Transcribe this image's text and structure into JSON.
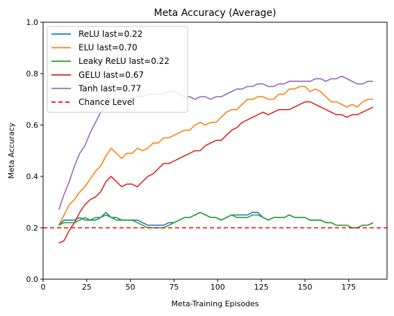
{
  "chart_data": {
    "type": "line",
    "title": "Meta Accuracy (Average)",
    "xlabel": "Meta-Training Episodes",
    "ylabel": "Meta Accuracy",
    "xlim": [
      0,
      197
    ],
    "ylim": [
      0.0,
      1.0
    ],
    "xticks": [
      0,
      25,
      50,
      75,
      100,
      125,
      150,
      175
    ],
    "yticks": [
      0.0,
      0.2,
      0.4,
      0.6,
      0.8,
      1.0
    ],
    "grid": false,
    "legend_position": "upper-left",
    "series": [
      {
        "name": "ReLU last=0.22",
        "color": "#1f77b4",
        "x": [
          9,
          12,
          15,
          18,
          21,
          24,
          27,
          30,
          33,
          36,
          39,
          42,
          45,
          48,
          51,
          54,
          57,
          60,
          63,
          66,
          69,
          72,
          75,
          78,
          81,
          84,
          87,
          90,
          93,
          96,
          99,
          102,
          105,
          108,
          111,
          114,
          117,
          120,
          123,
          126,
          129,
          132,
          135,
          138,
          141,
          144,
          147,
          150,
          153,
          156,
          159,
          162,
          165,
          168,
          171,
          174,
          177,
          180,
          183,
          186,
          189
        ],
        "values": [
          0.21,
          0.23,
          0.23,
          0.23,
          0.24,
          0.23,
          0.23,
          0.23,
          0.24,
          0.26,
          0.24,
          0.24,
          0.23,
          0.23,
          0.23,
          0.23,
          0.22,
          0.21,
          0.21,
          0.21,
          0.21,
          0.22,
          0.22,
          0.23,
          0.24,
          0.24,
          0.25,
          0.26,
          0.25,
          0.24,
          0.24,
          0.23,
          0.24,
          0.25,
          0.25,
          0.25,
          0.25,
          0.26,
          0.26,
          0.24,
          0.23,
          0.24,
          0.24,
          0.24,
          0.25,
          0.24,
          0.24,
          0.24,
          0.23,
          0.23,
          0.23,
          0.22,
          0.22,
          0.21,
          0.21,
          0.21,
          0.2,
          0.2,
          0.21,
          0.21,
          0.22
        ]
      },
      {
        "name": "ELU last=0.70",
        "color": "#ff7f0e",
        "x": [
          9,
          12,
          15,
          18,
          21,
          24,
          27,
          30,
          33,
          36,
          39,
          42,
          45,
          48,
          51,
          54,
          57,
          60,
          63,
          66,
          69,
          72,
          75,
          78,
          81,
          84,
          87,
          90,
          93,
          96,
          99,
          102,
          105,
          108,
          111,
          114,
          117,
          120,
          123,
          126,
          129,
          132,
          135,
          138,
          141,
          144,
          147,
          150,
          153,
          156,
          159,
          162,
          165,
          168,
          171,
          174,
          177,
          180,
          183,
          186,
          189
        ],
        "values": [
          0.21,
          0.25,
          0.29,
          0.31,
          0.34,
          0.36,
          0.39,
          0.42,
          0.44,
          0.48,
          0.51,
          0.49,
          0.47,
          0.49,
          0.49,
          0.51,
          0.5,
          0.51,
          0.53,
          0.53,
          0.55,
          0.55,
          0.56,
          0.57,
          0.58,
          0.58,
          0.6,
          0.61,
          0.6,
          0.61,
          0.61,
          0.63,
          0.65,
          0.66,
          0.66,
          0.68,
          0.7,
          0.7,
          0.71,
          0.71,
          0.7,
          0.7,
          0.72,
          0.72,
          0.74,
          0.74,
          0.75,
          0.75,
          0.73,
          0.74,
          0.73,
          0.71,
          0.69,
          0.69,
          0.68,
          0.67,
          0.68,
          0.67,
          0.69,
          0.7,
          0.7
        ]
      },
      {
        "name": "Leaky ReLU last=0.22",
        "color": "#2ca02c",
        "x": [
          9,
          12,
          15,
          18,
          21,
          24,
          27,
          30,
          33,
          36,
          39,
          42,
          45,
          48,
          51,
          54,
          57,
          60,
          63,
          66,
          69,
          72,
          75,
          78,
          81,
          84,
          87,
          90,
          93,
          96,
          99,
          102,
          105,
          108,
          111,
          114,
          117,
          120,
          123,
          126,
          129,
          132,
          135,
          138,
          141,
          144,
          147,
          150,
          153,
          156,
          159,
          162,
          165,
          168,
          171,
          174,
          177,
          180,
          183,
          186,
          189
        ],
        "values": [
          0.21,
          0.22,
          0.22,
          0.22,
          0.23,
          0.24,
          0.23,
          0.24,
          0.24,
          0.25,
          0.24,
          0.23,
          0.23,
          0.23,
          0.23,
          0.22,
          0.21,
          0.2,
          0.2,
          0.2,
          0.2,
          0.21,
          0.22,
          0.23,
          0.24,
          0.24,
          0.25,
          0.26,
          0.25,
          0.24,
          0.24,
          0.23,
          0.24,
          0.25,
          0.24,
          0.24,
          0.24,
          0.25,
          0.25,
          0.24,
          0.23,
          0.24,
          0.24,
          0.24,
          0.25,
          0.24,
          0.24,
          0.24,
          0.23,
          0.23,
          0.23,
          0.22,
          0.22,
          0.21,
          0.21,
          0.21,
          0.2,
          0.2,
          0.21,
          0.21,
          0.22
        ]
      },
      {
        "name": "GELU last=0.67",
        "color": "#d62728",
        "x": [
          9,
          12,
          15,
          18,
          21,
          24,
          27,
          30,
          33,
          36,
          39,
          42,
          45,
          48,
          51,
          54,
          57,
          60,
          63,
          66,
          69,
          72,
          75,
          78,
          81,
          84,
          87,
          90,
          93,
          96,
          99,
          102,
          105,
          108,
          111,
          114,
          117,
          120,
          123,
          126,
          129,
          132,
          135,
          138,
          141,
          144,
          147,
          150,
          153,
          156,
          159,
          162,
          165,
          168,
          171,
          174,
          177,
          180,
          183,
          186,
          189
        ],
        "values": [
          0.14,
          0.15,
          0.19,
          0.22,
          0.26,
          0.29,
          0.31,
          0.32,
          0.34,
          0.38,
          0.4,
          0.38,
          0.36,
          0.37,
          0.37,
          0.36,
          0.38,
          0.4,
          0.41,
          0.43,
          0.45,
          0.45,
          0.46,
          0.47,
          0.48,
          0.49,
          0.5,
          0.5,
          0.52,
          0.53,
          0.54,
          0.54,
          0.56,
          0.58,
          0.59,
          0.61,
          0.62,
          0.63,
          0.64,
          0.65,
          0.64,
          0.65,
          0.66,
          0.66,
          0.66,
          0.67,
          0.68,
          0.69,
          0.69,
          0.68,
          0.67,
          0.66,
          0.65,
          0.64,
          0.64,
          0.63,
          0.64,
          0.64,
          0.65,
          0.66,
          0.67
        ]
      },
      {
        "name": "Tanh last=0.77",
        "color": "#9467bd",
        "x": [
          9,
          12,
          15,
          18,
          21,
          24,
          27,
          30,
          33,
          36,
          39,
          42,
          45,
          48,
          51,
          54,
          57,
          60,
          63,
          66,
          69,
          72,
          75,
          78,
          81,
          84,
          87,
          90,
          93,
          96,
          99,
          102,
          105,
          108,
          111,
          114,
          117,
          120,
          123,
          126,
          129,
          132,
          135,
          138,
          141,
          144,
          147,
          150,
          153,
          156,
          159,
          162,
          165,
          168,
          171,
          174,
          177,
          180,
          183,
          186,
          189
        ],
        "values": [
          0.27,
          0.33,
          0.38,
          0.44,
          0.49,
          0.52,
          0.57,
          0.61,
          0.65,
          0.68,
          0.69,
          0.7,
          0.7,
          0.7,
          0.71,
          0.71,
          0.71,
          0.72,
          0.72,
          0.72,
          0.72,
          0.73,
          0.73,
          0.72,
          0.71,
          0.71,
          0.7,
          0.71,
          0.71,
          0.7,
          0.71,
          0.71,
          0.72,
          0.73,
          0.74,
          0.74,
          0.75,
          0.75,
          0.76,
          0.76,
          0.75,
          0.75,
          0.76,
          0.76,
          0.77,
          0.77,
          0.77,
          0.77,
          0.77,
          0.78,
          0.78,
          0.77,
          0.78,
          0.78,
          0.79,
          0.78,
          0.77,
          0.76,
          0.76,
          0.77,
          0.77
        ]
      },
      {
        "name": "Chance Level",
        "color": "#ff0000",
        "dashed": true,
        "x": [
          0,
          197
        ],
        "values": [
          0.2,
          0.2
        ]
      }
    ]
  }
}
